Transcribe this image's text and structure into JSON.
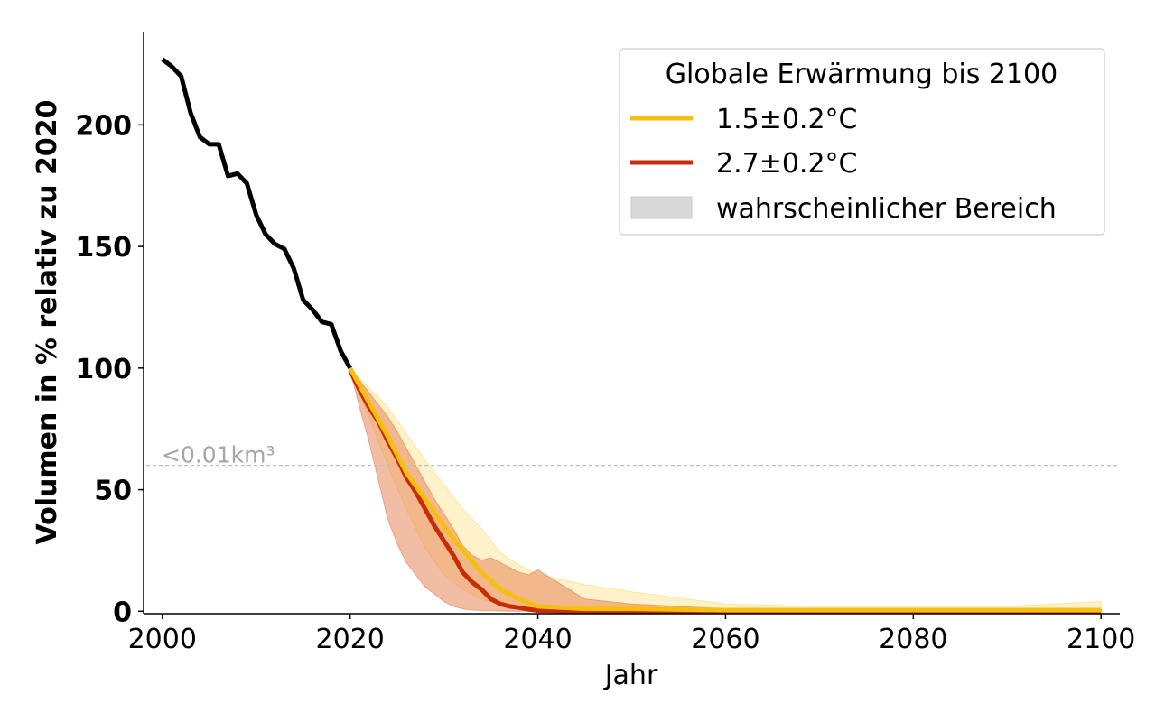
{
  "chart_data": {
    "type": "line",
    "xlabel": "Jahr",
    "ylabel": "Volumen in % relativ zu 2020",
    "xlim": [
      1998,
      2102
    ],
    "ylim": [
      -1,
      238
    ],
    "xticks": [
      2000,
      2020,
      2040,
      2060,
      2080,
      2100
    ],
    "yticks": [
      0,
      50,
      100,
      150,
      200
    ],
    "grid": false,
    "threshold": {
      "y": 60,
      "label": "<0.01km³",
      "color": "#bfbfbf"
    },
    "legend": {
      "title": "Globale Erwärmung bis 2100",
      "placement": "top-right",
      "entries": [
        {
          "label": "1.5±0.2°C",
          "kind": "line",
          "color": "#f5bf0f"
        },
        {
          "label": "2.7±0.2°C",
          "kind": "line",
          "color": "#c72d05"
        },
        {
          "label": "wahrscheinlicher Bereich",
          "kind": "patch",
          "color": "#d9d9d9"
        }
      ]
    },
    "series": [
      {
        "kind": "line",
        "color": "#000000",
        "x": [
          2000,
          2001,
          2002,
          2003,
          2004,
          2005,
          2006,
          2007,
          2008,
          2009,
          2010,
          2011,
          2012,
          2013,
          2014,
          2015,
          2016,
          2017,
          2018,
          2019,
          2020
        ],
        "values": [
          227,
          224,
          220,
          205,
          195,
          192,
          192,
          179,
          180,
          176,
          163,
          155,
          151,
          149,
          141,
          128,
          124,
          119,
          118,
          107,
          100
        ]
      },
      {
        "name": "1.5±0.2°C",
        "kind": "line",
        "color": "#f5bf0f",
        "x": [
          2020,
          2022,
          2024,
          2026,
          2028,
          2030,
          2032,
          2034,
          2036,
          2038,
          2040,
          2045,
          2050,
          2060,
          2070,
          2080,
          2090,
          2100
        ],
        "values": [
          100,
          86,
          72,
          57,
          46,
          35,
          25,
          16,
          9,
          5,
          2,
          1,
          1,
          0.5,
          0.5,
          0.5,
          0.5,
          0.5
        ],
        "band_lower": [
          100,
          80,
          60,
          42,
          26,
          15,
          9,
          5,
          3,
          1,
          0.5,
          0,
          0,
          0,
          0,
          0,
          0,
          0
        ],
        "band_upper": [
          100,
          92,
          84,
          73,
          62,
          52,
          42,
          34,
          24,
          19,
          15,
          11,
          8,
          3,
          2,
          2,
          2,
          4
        ],
        "band_color": "#fbd969"
      },
      {
        "name": "2.7±0.2°C",
        "kind": "line",
        "color": "#c72d05",
        "x": [
          2020,
          2021,
          2022,
          2023,
          2024,
          2025,
          2026,
          2027,
          2028,
          2029,
          2030,
          2031,
          2032,
          2033,
          2034,
          2035,
          2036,
          2037,
          2038,
          2039,
          2040,
          2045,
          2050,
          2060,
          2070,
          2080,
          2090,
          2100
        ],
        "values": [
          99,
          91,
          84,
          78,
          70,
          63,
          55,
          49,
          42,
          35,
          29,
          23,
          16,
          12,
          9,
          5,
          3,
          2,
          1.5,
          0.8,
          0.3,
          0,
          0,
          0,
          0,
          0,
          0,
          0
        ],
        "band_lower": [
          99,
          84,
          70,
          54,
          38,
          28,
          20,
          15,
          10,
          7,
          4,
          2,
          1,
          0.5,
          0.3,
          0.2,
          0.1,
          0,
          0,
          0,
          0,
          0,
          0,
          0,
          0,
          0,
          0,
          0
        ],
        "band_upper": [
          99,
          95,
          90,
          85,
          80,
          74,
          67,
          60,
          53,
          46,
          40,
          34,
          27,
          23,
          21,
          22,
          20,
          18,
          16,
          15,
          17,
          5,
          3,
          1,
          1,
          1,
          1,
          1
        ],
        "band_color": "#e57b4c"
      }
    ]
  }
}
